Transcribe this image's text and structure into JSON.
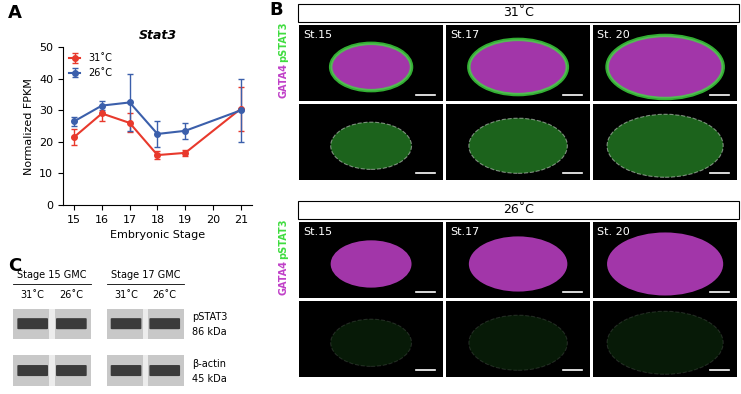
{
  "chart_data": {
    "type": "line",
    "title": "Stat3",
    "annotations": [
      "A"
    ],
    "x_label": "Embryonic Stage",
    "y_label": "Normalized FPKM",
    "x": [
      15,
      16,
      17,
      18,
      19,
      21
    ],
    "xlim": [
      14.6,
      21.4
    ],
    "xticks": [
      15,
      16,
      17,
      18,
      19,
      20,
      21
    ],
    "ylim": [
      0,
      50
    ],
    "yticks": [
      0,
      10,
      20,
      30,
      40,
      50
    ],
    "legend": "upper left",
    "grid": false,
    "series": [
      {
        "name": "31˚C",
        "color": "#e8392c",
        "marker": "circle",
        "values": [
          21.5,
          29,
          26,
          15.8,
          16.5,
          30.5
        ],
        "errors": [
          2.5,
          2.5,
          3,
          1.2,
          1,
          7
        ]
      },
      {
        "name": "26˚C",
        "color": "#3b5fab",
        "marker": "circle",
        "values": [
          26.5,
          31.5,
          32.5,
          22.5,
          23.5,
          30
        ],
        "errors": [
          1.5,
          1.5,
          9,
          4,
          2.5,
          10
        ]
      }
    ]
  },
  "panel_B": {
    "label": "B",
    "channels": [
      {
        "name": "GATA4",
        "color": "#c040c8"
      },
      {
        "name": "pSTAT3",
        "color": "#3fdc3f"
      }
    ],
    "groups": [
      {
        "temperature": "31˚C",
        "stages": [
          "St.15",
          "St.17",
          "St. 20"
        ]
      },
      {
        "temperature": "26˚C",
        "stages": [
          "St.15",
          "St.17",
          "St. 20"
        ]
      }
    ]
  },
  "panel_C": {
    "label": "C",
    "blots": [
      {
        "title": "Stage 15 GMC",
        "lanes": [
          "31˚C",
          "26˚C"
        ]
      },
      {
        "title": "Stage 17 GMC",
        "lanes": [
          "31˚C",
          "26˚C"
        ]
      }
    ],
    "bands": [
      {
        "name": "pSTAT3",
        "size": "86 kDa"
      },
      {
        "name": "β-actin",
        "size": "45 kDa"
      }
    ]
  }
}
